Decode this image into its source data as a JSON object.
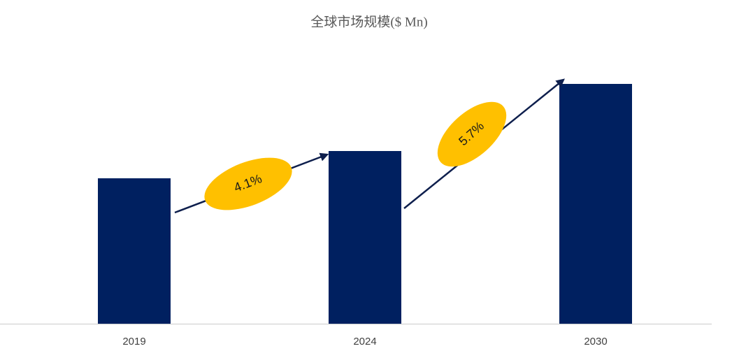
{
  "chart_data": {
    "type": "bar",
    "title": "全球市场规模($ Mn)",
    "categories": [
      "2019",
      "2024",
      "2030"
    ],
    "values": [
      208,
      247,
      343
    ],
    "color": "#002060",
    "ylim": [
      0,
      370
    ],
    "annotations": [
      "4.1%",
      "5.7%"
    ],
    "annotation_color": "#ffc000"
  }
}
